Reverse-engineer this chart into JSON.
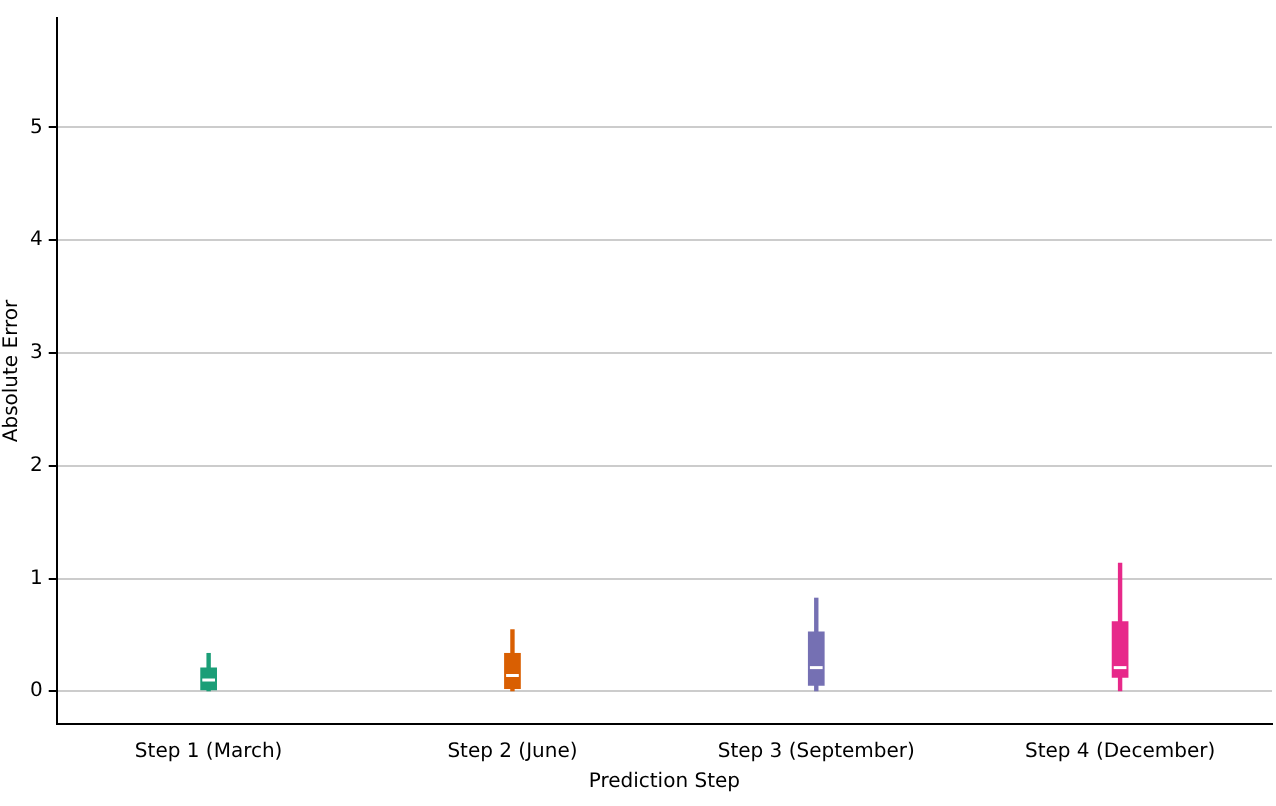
{
  "chart_data": {
    "type": "box",
    "xlabel": "Prediction Step",
    "ylabel": "Absolute Error",
    "categories": [
      "Step 1 (March)",
      "Step 2 (June)",
      "Step 3 (September)",
      "Step 4 (December)"
    ],
    "colors": [
      "#1b9e77",
      "#d95f02",
      "#7570b3",
      "#e7298a"
    ],
    "boxes": [
      {
        "low": 0,
        "q1": 0,
        "median": 0.1,
        "q3": 0.21,
        "high": 0.34
      },
      {
        "low": 0,
        "q1": 0.02,
        "median": 0.14,
        "q3": 0.34,
        "high": 0.55
      },
      {
        "low": 0,
        "q1": 0.05,
        "median": 0.21,
        "q3": 0.53,
        "high": 0.83
      },
      {
        "low": 0,
        "q1": 0.12,
        "median": 0.21,
        "q3": 0.62,
        "high": 1.14
      }
    ],
    "ylim": [
      -0.29,
      5.97
    ],
    "yticks": [
      0,
      1,
      2,
      3,
      4,
      5
    ],
    "grid": "y",
    "legend": false
  }
}
